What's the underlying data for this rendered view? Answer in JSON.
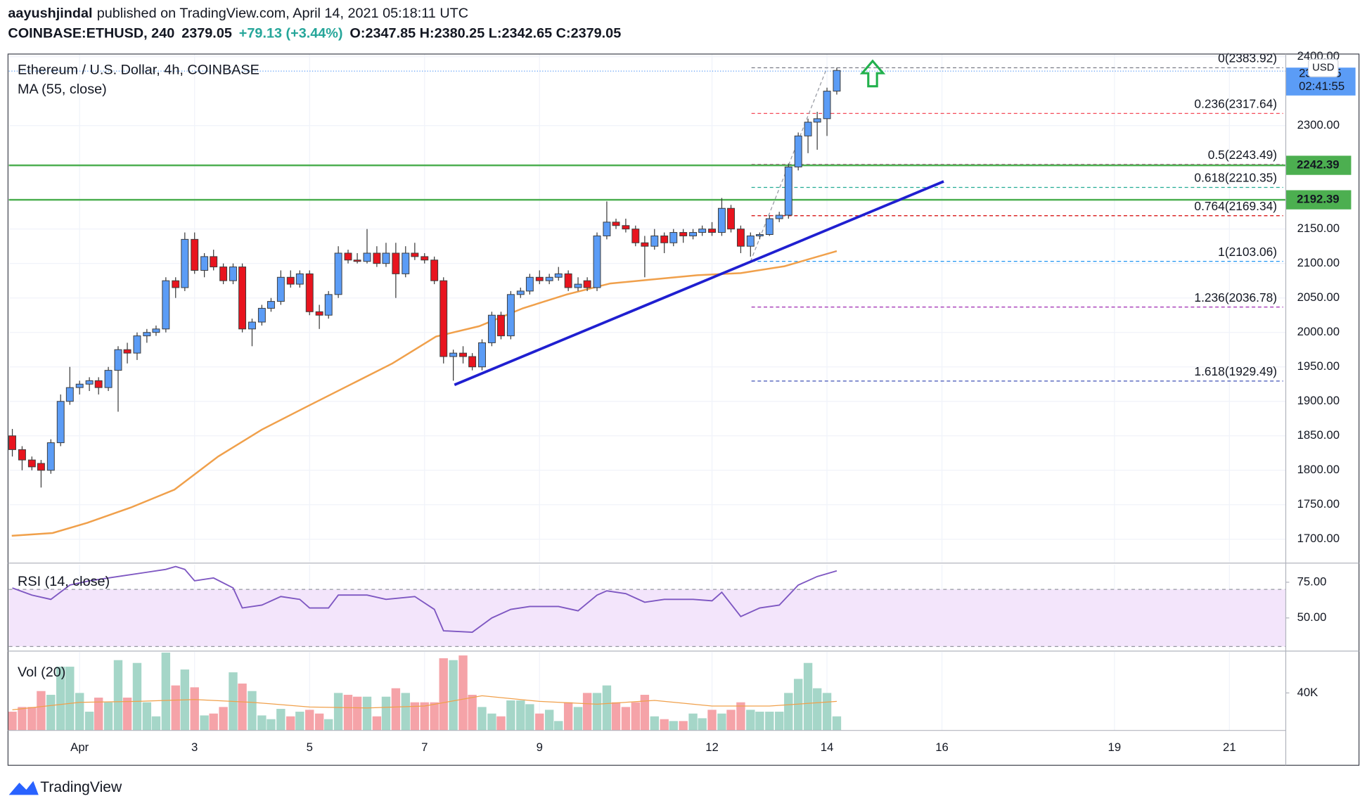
{
  "header": {
    "author": "aayushjindal",
    "published": "published on TradingView.com, April 14, 2021 05:18:11 UTC",
    "symbol": "COINBASE:ETHUSD, 240",
    "price": "2379.05",
    "change": "+79.13 (+3.44%)",
    "ohlc": "O:2347.85 H:2380.25 L:2342.65 C:2379.05"
  },
  "footer": "TradingView",
  "chart_data": {
    "type": "candlestick",
    "title": "Ethereum / U.S. Dollar, 4h, COINBASE",
    "currency": "USD",
    "last_price": 2379.05,
    "countdown": "02:41:55",
    "up_color": "#5b9cf6",
    "down_color": "#e8141e",
    "xlim": [
      -1.23,
      20.98
    ],
    "xticks": [
      {
        "value": 0,
        "label": "Apr"
      },
      {
        "value": 2,
        "label": "3"
      },
      {
        "value": 4,
        "label": "5"
      },
      {
        "value": 6,
        "label": "7"
      },
      {
        "value": 8,
        "label": "9"
      },
      {
        "value": 11,
        "label": "12"
      },
      {
        "value": 13,
        "label": "14"
      },
      {
        "value": 15,
        "label": "16"
      },
      {
        "value": 18,
        "label": "19"
      },
      {
        "value": 20,
        "label": "21"
      }
    ],
    "ylim": [
      1666.7,
      2403.8
    ],
    "yticks": [
      {
        "value": 1700,
        "label": "1700.00"
      },
      {
        "value": 1750,
        "label": "1750.00"
      },
      {
        "value": 1800,
        "label": "1800.00"
      },
      {
        "value": 1850,
        "label": "1850.00"
      },
      {
        "value": 1900,
        "label": "1900.00"
      },
      {
        "value": 1950,
        "label": "1950.00"
      },
      {
        "value": 2000,
        "label": "2000.00"
      },
      {
        "value": 2050,
        "label": "2050.00"
      },
      {
        "value": 2100,
        "label": "2100.00"
      },
      {
        "value": 2150,
        "label": "2150.00"
      },
      {
        "value": 2300,
        "label": "2300.00"
      },
      {
        "value": 2400,
        "label": "2400.00"
      }
    ],
    "grid": true,
    "x": [
      -1.17,
      -1,
      -0.83,
      -0.67,
      -0.5,
      -0.33,
      -0.17,
      0,
      0.17,
      0.33,
      0.5,
      0.67,
      0.83,
      1,
      1.17,
      1.33,
      1.5,
      1.67,
      1.83,
      2,
      2.17,
      2.33,
      2.5,
      2.67,
      2.83,
      3,
      3.17,
      3.33,
      3.5,
      3.67,
      3.83,
      4,
      4.17,
      4.33,
      4.5,
      4.67,
      4.83,
      5,
      5.17,
      5.33,
      5.5,
      5.67,
      5.83,
      6,
      6.17,
      6.33,
      6.5,
      6.67,
      6.83,
      7,
      7.17,
      7.33,
      7.5,
      7.67,
      7.83,
      8,
      8.17,
      8.33,
      8.5,
      8.67,
      8.83,
      9,
      9.17,
      9.33,
      9.5,
      9.67,
      9.83,
      10,
      10.17,
      10.33,
      10.5,
      10.67,
      10.83,
      11,
      11.17,
      11.33,
      11.5,
      11.67,
      11.83,
      12,
      12.17,
      12.33,
      12.5,
      12.67,
      12.83,
      13,
      13.17
    ],
    "candles": [
      [
        1850,
        1860,
        1820,
        1830
      ],
      [
        1830,
        1835,
        1800,
        1815
      ],
      [
        1815,
        1820,
        1800,
        1805
      ],
      [
        1810,
        1815,
        1775,
        1800
      ],
      [
        1800,
        1845,
        1795,
        1840
      ],
      [
        1840,
        1910,
        1835,
        1900
      ],
      [
        1900,
        1950,
        1895,
        1920
      ],
      [
        1920,
        1930,
        1910,
        1925
      ],
      [
        1925,
        1935,
        1915,
        1930
      ],
      [
        1930,
        1935,
        1910,
        1920
      ],
      [
        1920,
        1950,
        1915,
        1945
      ],
      [
        1945,
        1980,
        1885,
        1975
      ],
      [
        1975,
        1985,
        1955,
        1970
      ],
      [
        1970,
        2000,
        1960,
        1995
      ],
      [
        1995,
        2005,
        1985,
        2000
      ],
      [
        2000,
        2010,
        1995,
        2005
      ],
      [
        2005,
        2080,
        2000,
        2075
      ],
      [
        2075,
        2080,
        2050,
        2065
      ],
      [
        2065,
        2145,
        2060,
        2135
      ],
      [
        2135,
        2145,
        2085,
        2090
      ],
      [
        2090,
        2115,
        2080,
        2110
      ],
      [
        2110,
        2120,
        2090,
        2095
      ],
      [
        2095,
        2100,
        2070,
        2075
      ],
      [
        2075,
        2100,
        2070,
        2095
      ],
      [
        2095,
        2100,
        2000,
        2005
      ],
      [
        2005,
        2020,
        1980,
        2015
      ],
      [
        2015,
        2040,
        2010,
        2035
      ],
      [
        2035,
        2050,
        2030,
        2045
      ],
      [
        2045,
        2090,
        2040,
        2080
      ],
      [
        2080,
        2090,
        2065,
        2070
      ],
      [
        2070,
        2090,
        2065,
        2085
      ],
      [
        2085,
        2090,
        2025,
        2030
      ],
      [
        2030,
        2040,
        2005,
        2025
      ],
      [
        2025,
        2060,
        2020,
        2055
      ],
      [
        2055,
        2125,
        2050,
        2115
      ],
      [
        2115,
        2120,
        2100,
        2105
      ],
      [
        2105,
        2115,
        2100,
        2103
      ],
      [
        2103,
        2150,
        2100,
        2115
      ],
      [
        2115,
        2125,
        2095,
        2100
      ],
      [
        2100,
        2130,
        2095,
        2115
      ],
      [
        2115,
        2130,
        2050,
        2085
      ],
      [
        2085,
        2125,
        2080,
        2115
      ],
      [
        2115,
        2130,
        2105,
        2110
      ],
      [
        2110,
        2115,
        2100,
        2105
      ],
      [
        2105,
        2110,
        2070,
        2075
      ],
      [
        2075,
        2080,
        1955,
        1965
      ],
      [
        1965,
        1975,
        1930,
        1970
      ],
      [
        1970,
        1980,
        1955,
        1965
      ],
      [
        1965,
        1970,
        1945,
        1950
      ],
      [
        1950,
        1990,
        1945,
        1985
      ],
      [
        1985,
        2030,
        1980,
        2025
      ],
      [
        2025,
        2030,
        1990,
        1995
      ],
      [
        1995,
        2060,
        1990,
        2055
      ],
      [
        2055,
        2065,
        2050,
        2060
      ],
      [
        2060,
        2085,
        2055,
        2080
      ],
      [
        2080,
        2090,
        2070,
        2075
      ],
      [
        2075,
        2085,
        2070,
        2080
      ],
      [
        2080,
        2095,
        2075,
        2085
      ],
      [
        2085,
        2090,
        2060,
        2065
      ],
      [
        2065,
        2080,
        2060,
        2070
      ],
      [
        2075,
        2080,
        2060,
        2065
      ],
      [
        2065,
        2145,
        2060,
        2140
      ],
      [
        2140,
        2190,
        2135,
        2160
      ],
      [
        2160,
        2165,
        2150,
        2155
      ],
      [
        2155,
        2165,
        2145,
        2150
      ],
      [
        2150,
        2155,
        2125,
        2130
      ],
      [
        2130,
        2140,
        2080,
        2125
      ],
      [
        2125,
        2150,
        2120,
        2140
      ],
      [
        2140,
        2145,
        2115,
        2130
      ],
      [
        2130,
        2150,
        2125,
        2145
      ],
      [
        2145,
        2150,
        2130,
        2140
      ],
      [
        2140,
        2150,
        2135,
        2145
      ],
      [
        2145,
        2155,
        2140,
        2150
      ],
      [
        2150,
        2160,
        2140,
        2145
      ],
      [
        2145,
        2195,
        2140,
        2180
      ],
      [
        2180,
        2185,
        2145,
        2150
      ],
      [
        2150,
        2155,
        2115,
        2125
      ],
      [
        2125,
        2145,
        2110,
        2140
      ],
      [
        2140,
        2145,
        2135,
        2142
      ],
      [
        2142,
        2170,
        2140,
        2165
      ],
      [
        2165,
        2175,
        2160,
        2170
      ],
      [
        2170,
        2245,
        2165,
        2240
      ],
      [
        2240,
        2290,
        2235,
        2285
      ],
      [
        2285,
        2310,
        2260,
        2305
      ],
      [
        2305,
        2320,
        2265,
        2310
      ],
      [
        2310,
        2355,
        2285,
        2350
      ],
      [
        2350,
        2384,
        2345,
        2380
      ]
    ],
    "ma": {
      "name": "MA (55, close)",
      "color": "#f0a04b",
      "x": [
        -1.18,
        -0.47,
        0.14,
        0.89,
        1.65,
        2.41,
        3.17,
        3.92,
        4.68,
        5.44,
        6.2,
        6.95,
        7.71,
        8.47,
        9.23,
        9.98,
        10.74,
        11.5,
        12.26,
        13.17
      ],
      "values": [
        1705,
        1709,
        1724,
        1746,
        1772,
        1820,
        1859,
        1891,
        1923,
        1955,
        1994,
        2009,
        2035,
        2055,
        2071,
        2077,
        2083,
        2086,
        2096,
        2118
      ]
    },
    "trendline": {
      "color": "#1f1fd0",
      "x": [
        6.52,
        15.03
      ],
      "values": [
        1924,
        2219
      ]
    },
    "levels": [
      {
        "value": 2242.39,
        "color": "#4caf50"
      },
      {
        "value": 2192.39,
        "color": "#4caf50"
      }
    ],
    "fib": [
      {
        "label": "0(2383.92)",
        "value": 2383.92,
        "color": "#787b86"
      },
      {
        "label": "0.236(2317.64)",
        "value": 2317.64,
        "color": "#f23645"
      },
      {
        "label": "0.5(2243.49)",
        "value": 2243.49,
        "color": "#880e4f"
      },
      {
        "label": "0.618(2210.35)",
        "value": 2210.35,
        "color": "#22ab94"
      },
      {
        "label": "0.764(2169.34)",
        "value": 2169.34,
        "color": "#d50000"
      },
      {
        "label": "1(2103.06)",
        "value": 2103.06,
        "color": "#2196f3"
      },
      {
        "label": "1.236(2036.78)",
        "value": 2036.78,
        "color": "#9c27b0"
      },
      {
        "label": "1.618(1929.49)",
        "value": 1929.49,
        "color": "#3f51b5"
      }
    ],
    "rsi": {
      "name": "RSI (14, close)",
      "color": "#7e57c2",
      "ylim": [
        28,
        87.2
      ],
      "yticks": [
        {
          "value": 75,
          "label": "75.00"
        },
        {
          "value": 50,
          "label": "50.00"
        }
      ],
      "band": [
        30,
        70
      ],
      "x": [
        -1.17,
        -0.83,
        -0.5,
        -0.17,
        0.17,
        0.67,
        1.17,
        1.5,
        1.67,
        1.83,
        2,
        2.33,
        2.67,
        2.83,
        3.17,
        3.5,
        3.83,
        4,
        4.33,
        4.5,
        5,
        5.33,
        5.83,
        6.17,
        6.33,
        6.83,
        7.17,
        7.5,
        7.83,
        8.33,
        8.67,
        9,
        9.17,
        9.5,
        9.83,
        10.17,
        10.67,
        11,
        11.17,
        11.5,
        11.83,
        12.17,
        12.5,
        12.83,
        13.17
      ],
      "values": [
        71,
        66,
        63,
        73,
        76,
        79,
        82,
        84,
        86,
        84,
        76,
        78,
        71,
        57,
        59,
        65,
        63,
        57,
        57,
        66,
        66,
        63,
        65,
        56,
        41,
        40,
        50,
        56,
        58,
        58,
        55,
        66,
        69,
        67,
        61,
        63,
        63,
        62,
        68,
        51,
        57,
        59,
        73,
        79,
        83
      ]
    },
    "volume": {
      "name": "Vol (20)",
      "ylim": [
        0,
        83700
      ],
      "yticks": [
        {
          "value": 40000,
          "label": "40K"
        }
      ],
      "up_color": "#a5d6c8",
      "down_color": "#f5a3a8",
      "values": [
        20000,
        25000,
        25000,
        42000,
        38000,
        68000,
        68000,
        40000,
        20000,
        35000,
        30000,
        75000,
        35000,
        72000,
        30000,
        15000,
        83000,
        48000,
        65000,
        46000,
        16000,
        18000,
        25000,
        62000,
        50000,
        42000,
        16000,
        12000,
        23000,
        15000,
        20000,
        22000,
        18000,
        12000,
        40000,
        38000,
        36000,
        36000,
        15000,
        36000,
        45000,
        40000,
        30000,
        30000,
        30000,
        77000,
        75000,
        80000,
        38000,
        25000,
        18000,
        15000,
        32000,
        32000,
        28000,
        18000,
        22000,
        10000,
        30000,
        25000,
        40000,
        40000,
        48000,
        30000,
        25000,
        30000,
        38000,
        15000,
        12000,
        10000,
        10000,
        18000,
        13000,
        22000,
        18000,
        22000,
        30000,
        22000,
        20000,
        20000,
        20000,
        40000,
        55000,
        72000,
        45000,
        40000,
        15000
      ],
      "ma_color": "#f0a04b",
      "ma_x": [
        -1.17,
        0,
        1,
        2,
        3,
        4,
        5,
        6,
        7,
        8,
        9,
        10,
        11,
        12,
        13.17
      ],
      "ma_values": [
        22000,
        30000,
        31000,
        33000,
        30000,
        25000,
        24000,
        26000,
        37000,
        31000,
        28000,
        32000,
        26000,
        26000,
        31000
      ]
    }
  }
}
